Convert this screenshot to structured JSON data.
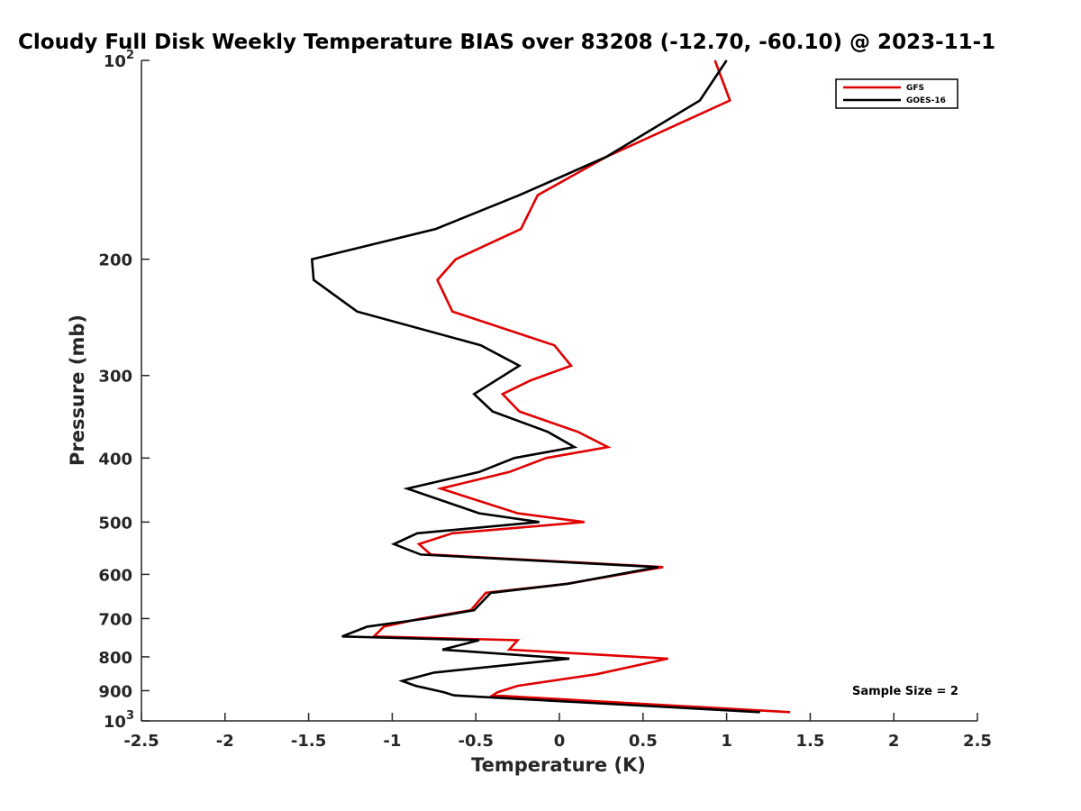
{
  "chart_data": {
    "type": "line",
    "title": "Cloudy Full Disk Weekly Temperature BIAS over 83208 (-12.70, -60.10) @ 2023-11-1",
    "xlabel": "Temperature (K)",
    "ylabel": "Pressure (mb)",
    "xlim": [
      -2.5,
      2.5
    ],
    "ylim": [
      100,
      1000
    ],
    "y_scale": "log",
    "y_direction": "reversed",
    "x_ticks": [
      "-2.5",
      "-2",
      "-1.5",
      "-1",
      "-0.5",
      "0",
      "0.5",
      "1",
      "1.5",
      "2",
      "2.5"
    ],
    "y_ticks": [
      {
        "value": 100,
        "base": "10",
        "exp": "2"
      },
      {
        "value": 200,
        "label": "200"
      },
      {
        "value": 300,
        "label": "300"
      },
      {
        "value": 400,
        "label": "400"
      },
      {
        "value": 500,
        "label": "500"
      },
      {
        "value": 600,
        "label": "600"
      },
      {
        "value": 700,
        "label": "700"
      },
      {
        "value": 800,
        "label": "800"
      },
      {
        "value": 900,
        "label": "900"
      },
      {
        "value": 1000,
        "base": "10",
        "exp": "3"
      }
    ],
    "grid": false,
    "legend_position": "top-right",
    "annotation": "Sample Size = 2",
    "series": [
      {
        "name": "GFS",
        "color": "#e00000",
        "points": [
          {
            "x": 0.93,
            "y": 100
          },
          {
            "x": 1.02,
            "y": 115
          },
          {
            "x": 0.28,
            "y": 140
          },
          {
            "x": -0.13,
            "y": 160
          },
          {
            "x": -0.23,
            "y": 180
          },
          {
            "x": -0.62,
            "y": 200
          },
          {
            "x": -0.73,
            "y": 215
          },
          {
            "x": -0.64,
            "y": 240
          },
          {
            "x": -0.03,
            "y": 270
          },
          {
            "x": 0.07,
            "y": 290
          },
          {
            "x": -0.17,
            "y": 305
          },
          {
            "x": -0.34,
            "y": 320
          },
          {
            "x": -0.24,
            "y": 340
          },
          {
            "x": 0.11,
            "y": 365
          },
          {
            "x": 0.29,
            "y": 385
          },
          {
            "x": -0.08,
            "y": 400
          },
          {
            "x": -0.3,
            "y": 420
          },
          {
            "x": -0.71,
            "y": 445
          },
          {
            "x": -0.25,
            "y": 485
          },
          {
            "x": 0.15,
            "y": 500
          },
          {
            "x": -0.64,
            "y": 520
          },
          {
            "x": -0.84,
            "y": 540
          },
          {
            "x": -0.77,
            "y": 560
          },
          {
            "x": 0.62,
            "y": 585
          },
          {
            "x": 0.05,
            "y": 620
          },
          {
            "x": -0.44,
            "y": 640
          },
          {
            "x": -0.53,
            "y": 680
          },
          {
            "x": -0.83,
            "y": 700
          },
          {
            "x": -1.05,
            "y": 720
          },
          {
            "x": -1.11,
            "y": 745
          },
          {
            "x": -0.25,
            "y": 755
          },
          {
            "x": -0.3,
            "y": 780
          },
          {
            "x": 0.65,
            "y": 805
          },
          {
            "x": 0.22,
            "y": 850
          },
          {
            "x": -0.25,
            "y": 885
          },
          {
            "x": -0.37,
            "y": 905
          },
          {
            "x": -0.4,
            "y": 915
          },
          {
            "x": 1.38,
            "y": 970
          }
        ]
      },
      {
        "name": "GOES-16",
        "color": "#000000",
        "points": [
          {
            "x": 1.0,
            "y": 100
          },
          {
            "x": 0.84,
            "y": 115
          },
          {
            "x": 0.28,
            "y": 140
          },
          {
            "x": -0.24,
            "y": 160
          },
          {
            "x": -0.74,
            "y": 180
          },
          {
            "x": -1.48,
            "y": 200
          },
          {
            "x": -1.47,
            "y": 215
          },
          {
            "x": -1.21,
            "y": 240
          },
          {
            "x": -0.47,
            "y": 270
          },
          {
            "x": -0.24,
            "y": 290
          },
          {
            "x": -0.51,
            "y": 320
          },
          {
            "x": -0.4,
            "y": 340
          },
          {
            "x": -0.07,
            "y": 365
          },
          {
            "x": 0.09,
            "y": 385
          },
          {
            "x": -0.27,
            "y": 400
          },
          {
            "x": -0.48,
            "y": 420
          },
          {
            "x": -0.91,
            "y": 445
          },
          {
            "x": -0.48,
            "y": 485
          },
          {
            "x": -0.12,
            "y": 500
          },
          {
            "x": -0.85,
            "y": 520
          },
          {
            "x": -0.99,
            "y": 540
          },
          {
            "x": -0.83,
            "y": 560
          },
          {
            "x": 0.59,
            "y": 585
          },
          {
            "x": 0.05,
            "y": 620
          },
          {
            "x": -0.41,
            "y": 640
          },
          {
            "x": -0.51,
            "y": 680
          },
          {
            "x": -0.8,
            "y": 700
          },
          {
            "x": -1.15,
            "y": 720
          },
          {
            "x": -1.3,
            "y": 745
          },
          {
            "x": -0.48,
            "y": 755
          },
          {
            "x": -0.7,
            "y": 780
          },
          {
            "x": 0.06,
            "y": 805
          },
          {
            "x": -0.75,
            "y": 845
          },
          {
            "x": -0.94,
            "y": 870
          },
          {
            "x": -0.86,
            "y": 885
          },
          {
            "x": -0.69,
            "y": 905
          },
          {
            "x": -0.63,
            "y": 915
          },
          {
            "x": 1.2,
            "y": 970
          }
        ]
      }
    ]
  }
}
